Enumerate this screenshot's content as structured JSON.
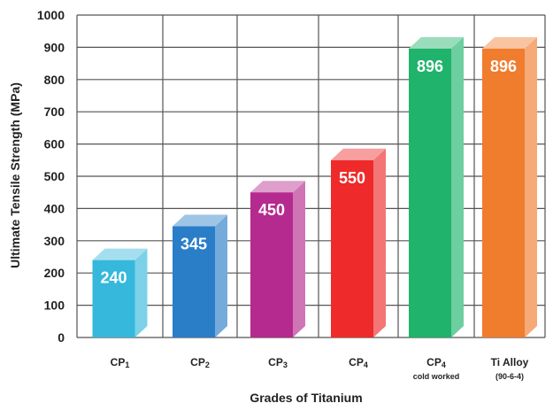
{
  "chart_data": {
    "type": "bar",
    "style": "3d",
    "xlabel": "Grades of Titanium",
    "ylabel": "Ultimate Tensile Strength (MPa)",
    "ylim": [
      0,
      1000
    ],
    "yticks": [
      0,
      100,
      200,
      300,
      400,
      500,
      600,
      700,
      800,
      900,
      1000
    ],
    "grid": true,
    "bars": [
      {
        "category": "CP1",
        "sublabel": "",
        "value": 240,
        "label": "240",
        "color": "#36b8dc"
      },
      {
        "category": "CP2",
        "sublabel": "",
        "value": 345,
        "label": "345",
        "color": "#2a7ec8"
      },
      {
        "category": "CP3",
        "sublabel": "",
        "value": 450,
        "label": "450",
        "color": "#b52a8e"
      },
      {
        "category": "CP4",
        "sublabel": "",
        "value": 550,
        "label": "550",
        "color": "#ee2a2a"
      },
      {
        "category": "CP4",
        "sublabel": "cold worked",
        "value": 896,
        "label": "896",
        "color": "#1fb36b"
      },
      {
        "category": "Ti Alloy",
        "sublabel": "(90-6-4)",
        "value": 896,
        "label": "896",
        "color": "#f07c2e"
      }
    ]
  }
}
